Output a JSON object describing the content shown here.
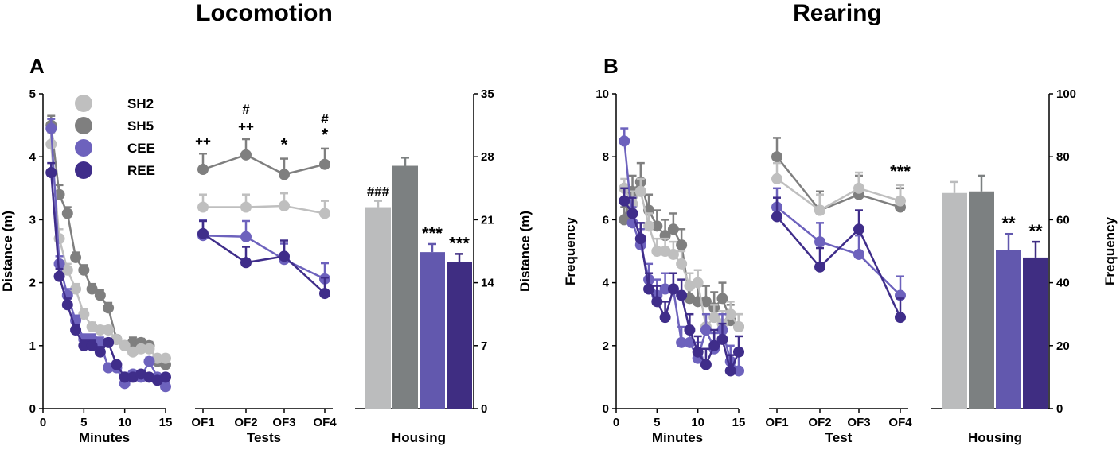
{
  "titles": {
    "left": "Locomotion",
    "right": "Rearing"
  },
  "panel_labels": {
    "a": "A",
    "b": "B"
  },
  "series": [
    {
      "name": "SH2",
      "color": "#bfbfbf",
      "bar_color": "#bbbcbd"
    },
    {
      "name": "SH5",
      "color": "#7f7f7f",
      "bar_color": "#7c8081"
    },
    {
      "name": "CEE",
      "color": "#6d62bd",
      "bar_color": "#6258ae"
    },
    {
      "name": "REE",
      "color": "#3f2d8a",
      "bar_color": "#3f2d82"
    }
  ],
  "chart_data": [
    {
      "id": "locomotion-minutes",
      "type": "line",
      "xlabel": "Minutes",
      "ylabel": "Distance (m)",
      "xlim": [
        0,
        15
      ],
      "ylim": [
        0,
        5
      ],
      "xticks": [
        "0",
        "5",
        "10",
        "15"
      ],
      "yticks": [
        "0",
        "1",
        "2",
        "3",
        "4",
        "5"
      ],
      "x": [
        1,
        2,
        3,
        4,
        5,
        6,
        7,
        8,
        9,
        10,
        11,
        12,
        13,
        14,
        15
      ],
      "series": [
        {
          "name": "SH2",
          "values": [
            4.2,
            2.7,
            2.2,
            1.9,
            1.5,
            1.3,
            1.25,
            1.25,
            1.1,
            1.0,
            0.9,
            0.95,
            0.95,
            0.8,
            0.8
          ],
          "errors": [
            0.18,
            0.15,
            0.1,
            0.08,
            0.08,
            0.07,
            0.06,
            0.06,
            0.05,
            0.05,
            0.05,
            0.05,
            0.05,
            0.05,
            0.05
          ]
        },
        {
          "name": "SH5",
          "values": [
            4.5,
            3.4,
            3.1,
            2.4,
            2.2,
            1.9,
            1.8,
            1.6,
            1.1,
            1.0,
            1.05,
            1.05,
            1.0,
            0.75,
            0.7
          ],
          "errors": [
            0.15,
            0.15,
            0.1,
            0.08,
            0.08,
            0.08,
            0.08,
            0.08,
            0.06,
            0.06,
            0.08,
            0.06,
            0.06,
            0.06,
            0.05
          ]
        },
        {
          "name": "CEE",
          "values": [
            4.45,
            2.3,
            1.8,
            1.4,
            1.1,
            1.1,
            1.05,
            0.65,
            0.65,
            0.4,
            0.55,
            0.5,
            0.75,
            0.5,
            0.35
          ],
          "errors": [
            0.15,
            0.12,
            0.1,
            0.08,
            0.08,
            0.08,
            0.08,
            0.06,
            0.05,
            0.05,
            0.05,
            0.05,
            0.06,
            0.05,
            0.05
          ]
        },
        {
          "name": "REE",
          "values": [
            3.75,
            2.1,
            1.65,
            1.25,
            1.0,
            1.0,
            0.9,
            1.05,
            0.7,
            0.5,
            0.5,
            0.55,
            0.5,
            0.45,
            0.5
          ],
          "errors": [
            0.15,
            0.12,
            0.1,
            0.08,
            0.08,
            0.08,
            0.08,
            0.06,
            0.05,
            0.05,
            0.05,
            0.05,
            0.05,
            0.05,
            0.05
          ]
        }
      ]
    },
    {
      "id": "locomotion-tests",
      "type": "line",
      "xlabel": "Tests",
      "ylim": [
        0,
        5
      ],
      "categories": [
        "OF1",
        "OF2",
        "OF3",
        "OF4"
      ],
      "series": [
        {
          "name": "SH2",
          "values": [
            3.2,
            3.2,
            3.22,
            3.1
          ],
          "errors": [
            0.2,
            0.2,
            0.2,
            0.2
          ]
        },
        {
          "name": "SH5",
          "values": [
            3.8,
            4.03,
            3.72,
            3.88
          ],
          "errors": [
            0.25,
            0.25,
            0.25,
            0.25
          ]
        },
        {
          "name": "CEE",
          "values": [
            2.75,
            2.73,
            2.37,
            2.06
          ],
          "errors": [
            0.25,
            0.25,
            0.25,
            0.25
          ]
        },
        {
          "name": "REE",
          "values": [
            2.78,
            2.32,
            2.42,
            1.83
          ],
          "errors": [
            0.2,
            0.25,
            0.25,
            0.25
          ]
        }
      ],
      "annotations": [
        {
          "category": "OF1",
          "lines": [
            "++"
          ]
        },
        {
          "category": "OF2",
          "lines": [
            "#",
            "++"
          ]
        },
        {
          "category": "OF3",
          "lines": [
            "*"
          ]
        },
        {
          "category": "OF4",
          "lines": [
            "#",
            "*"
          ]
        }
      ]
    },
    {
      "id": "locomotion-housing",
      "type": "bar",
      "xlabel": "Housing",
      "ylabel": "Distance (m)",
      "ylim": [
        0,
        35
      ],
      "yticks": [
        "0",
        "7",
        "14",
        "21",
        "28",
        "35"
      ],
      "categories": [
        "SH2",
        "SH5",
        "CEE",
        "REE"
      ],
      "values": [
        22.4,
        27.0,
        17.4,
        16.3
      ],
      "errors": [
        0.7,
        0.9,
        0.9,
        0.9
      ],
      "labels": [
        "###",
        "",
        "***",
        "***"
      ]
    },
    {
      "id": "rearing-minutes",
      "type": "line",
      "xlabel": "Minutes",
      "ylabel": "Frequency",
      "xlim": [
        0,
        15
      ],
      "ylim": [
        0,
        10
      ],
      "xticks": [
        "0",
        "5",
        "10",
        "15"
      ],
      "yticks": [
        "0",
        "2",
        "4",
        "6",
        "8",
        "10"
      ],
      "x": [
        1,
        2,
        3,
        4,
        5,
        6,
        7,
        8,
        9,
        10,
        11,
        12,
        13,
        14,
        15
      ],
      "series": [
        {
          "name": "SH2",
          "values": [
            7.0,
            6.5,
            6.9,
            5.8,
            5.0,
            5.0,
            4.9,
            4.6,
            3.9,
            4.0,
            2.6,
            2.9,
            2.7,
            3.0,
            2.6
          ],
          "errors": [
            0.3,
            0.4,
            0.4,
            0.4,
            0.4,
            0.4,
            0.4,
            0.4,
            0.4,
            0.4,
            0.4,
            0.4,
            0.4,
            0.4,
            0.4
          ]
        },
        {
          "name": "SH5",
          "values": [
            6.0,
            6.9,
            7.2,
            6.3,
            5.8,
            5.5,
            5.7,
            5.2,
            3.5,
            3.4,
            3.4,
            3.2,
            3.5,
            2.8,
            2.6
          ],
          "errors": [
            0.4,
            0.5,
            0.6,
            0.5,
            0.5,
            0.5,
            0.5,
            0.5,
            0.5,
            0.5,
            0.5,
            0.5,
            0.5,
            0.5,
            0.4
          ]
        },
        {
          "name": "CEE",
          "values": [
            8.5,
            5.9,
            5.2,
            4.1,
            3.6,
            3.8,
            3.8,
            2.1,
            2.1,
            1.6,
            2.5,
            1.9,
            2.5,
            1.5,
            1.2
          ],
          "errors": [
            0.4,
            0.5,
            0.5,
            0.5,
            0.5,
            0.5,
            0.5,
            0.5,
            0.5,
            0.5,
            0.5,
            0.5,
            0.5,
            0.5,
            0.5
          ]
        },
        {
          "name": "REE",
          "values": [
            6.6,
            6.2,
            5.4,
            3.8,
            3.4,
            2.9,
            3.8,
            3.6,
            2.5,
            1.8,
            1.4,
            2.0,
            2.2,
            1.2,
            1.8
          ],
          "errors": [
            0.4,
            0.5,
            0.5,
            0.5,
            0.5,
            0.5,
            0.5,
            0.5,
            0.5,
            0.5,
            0.5,
            0.5,
            0.5,
            0.5,
            0.5
          ]
        }
      ]
    },
    {
      "id": "rearing-test",
      "type": "line",
      "xlabel": "Test",
      "ylim": [
        0,
        10
      ],
      "categories": [
        "OF1",
        "OF2",
        "OF3",
        "OF4"
      ],
      "series": [
        {
          "name": "SH2",
          "values": [
            7.3,
            6.3,
            7.0,
            6.6
          ],
          "errors": [
            0.5,
            0.5,
            0.5,
            0.5
          ]
        },
        {
          "name": "SH5",
          "values": [
            8.0,
            6.3,
            6.8,
            6.4
          ],
          "errors": [
            0.6,
            0.6,
            0.6,
            0.6
          ]
        },
        {
          "name": "CEE",
          "values": [
            6.4,
            5.3,
            4.9,
            3.6
          ],
          "errors": [
            0.6,
            0.6,
            0.6,
            0.6
          ]
        },
        {
          "name": "REE",
          "values": [
            6.1,
            4.5,
            5.7,
            2.9
          ],
          "errors": [
            0.6,
            0.6,
            0.6,
            0.6
          ]
        }
      ],
      "annotations": [
        {
          "category": "OF4",
          "lines": [
            "***"
          ]
        }
      ]
    },
    {
      "id": "rearing-housing",
      "type": "bar",
      "xlabel": "Housing",
      "ylabel": "Frequency",
      "ylim": [
        0,
        100
      ],
      "yticks": [
        "0",
        "20",
        "40",
        "60",
        "80",
        "100"
      ],
      "categories": [
        "SH2",
        "SH5",
        "CEE",
        "REE"
      ],
      "values": [
        68.5,
        69.0,
        50.5,
        48.0
      ],
      "errors": [
        3.5,
        5.0,
        5.0,
        5.0
      ],
      "labels": [
        "",
        "",
        "**",
        "**"
      ]
    }
  ]
}
